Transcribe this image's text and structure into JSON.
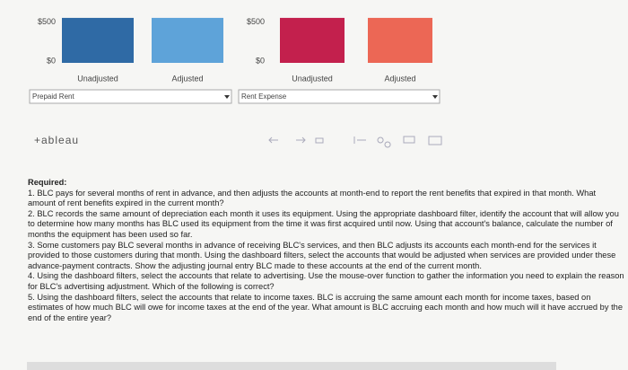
{
  "chart_data": [
    {
      "type": "bar",
      "categories": [
        "Unadjusted",
        "Adjusted"
      ],
      "values": [
        550,
        550
      ],
      "colors": [
        "#2f6aa5",
        "#5ea3d9"
      ],
      "ylim": [
        0,
        560
      ],
      "yticks": [
        {
          "value": 500,
          "label": "$500"
        },
        {
          "value": 0,
          "label": "$0"
        }
      ],
      "filter": "Prepaid Rent"
    },
    {
      "type": "bar",
      "categories": [
        "Unadjusted",
        "Adjusted"
      ],
      "values": [
        550,
        550
      ],
      "colors": [
        "#c3204d",
        "#ec6755"
      ],
      "ylim": [
        0,
        560
      ],
      "yticks": [
        {
          "value": 500,
          "label": "$500"
        },
        {
          "value": 0,
          "label": "$0"
        }
      ],
      "filter": "Rent Expense"
    }
  ],
  "logo": "+ableau",
  "required": {
    "heading": "Required:",
    "items": [
      "1. BLC pays for several months of rent in advance, and then adjusts the accounts at month-end to report the rent benefits that expired in that month. What amount of rent benefits expired in the current month?",
      "2. BLC records the same amount of depreciation each month it uses its equipment. Using the appropriate dashboard filter, identify the account that will allow you to determine how many months has BLC used its equipment from the time it was first acquired until now. Using that account's balance, calculate the number of months the equipment has been used so far.",
      "3. Some customers pay BLC several months in advance of receiving BLC's services, and then BLC adjusts its accounts each month-end for the services it provided to those customers during that month. Using the dashboard filters, select the accounts that would be adjusted when services are provided under these advance-payment contracts. Show the adjusting journal entry BLC made to these accounts at the end of the current month.",
      "4. Using the dashboard filters, select the accounts that relate to advertising. Use the mouse-over function to gather the information you need to explain the reason for BLC's advertising adjustment. Which of the following is correct?",
      "5. Using the dashboard filters, select the accounts that relate to income taxes. BLC is accruing the same amount each month for income taxes, based on estimates of how much BLC will owe for income taxes at the end of the year. What amount is BLC accruing each month and how much will it have accrued by the end of the entire year?"
    ]
  }
}
